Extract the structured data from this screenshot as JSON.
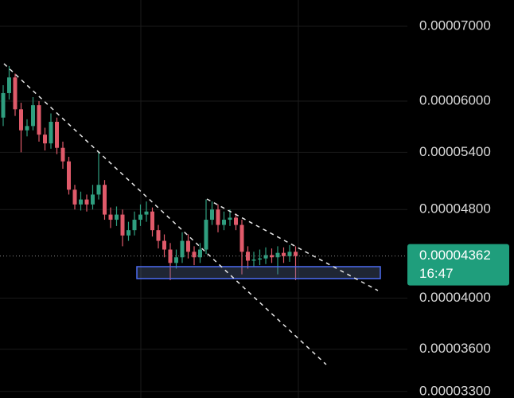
{
  "chart_data": {
    "type": "candlestick",
    "log_scale": true,
    "ylim": [
      3.256e-05,
      7.389e-05
    ],
    "yticks": [
      {
        "value": 7e-05,
        "label": "0.00007000"
      },
      {
        "value": 6e-05,
        "label": "0.00006000"
      },
      {
        "value": 5.4e-05,
        "label": "0.00005400"
      },
      {
        "value": 4.8e-05,
        "label": "0.00004800"
      },
      {
        "value": 4e-05,
        "label": "0.00004000"
      },
      {
        "value": 3.6e-05,
        "label": "0.00003600"
      },
      {
        "value": 3.3e-05,
        "label": "0.00003300"
      }
    ],
    "grid": true,
    "up_color": "#2f9e7f",
    "down_color": "#e05a6a",
    "open": [
      5.8e-05,
      6.1e-05,
      6.3e-05,
      5.9e-05,
      5.65e-05,
      5.7e-05,
      5.95e-05,
      5.6e-05,
      5.5e-05,
      5.75e-05,
      5.45e-05,
      5.3e-05,
      5e-05,
      4.85e-05,
      4.9e-05,
      4.85e-05,
      4.95e-05,
      5.05e-05,
      4.75e-05,
      4.7e-05,
      4.75e-05,
      4.55e-05,
      4.6e-05,
      4.7e-05,
      4.75e-05,
      4.78e-05,
      4.6e-05,
      4.5e-05,
      4.42e-05,
      4.3e-05,
      4.35e-05,
      4.5e-05,
      4.4e-05,
      4.35e-05,
      4.42e-05,
      4.7e-05,
      4.8e-05,
      4.65e-05,
      4.7e-05,
      4.72e-05,
      4.65e-05,
      4.4e-05,
      4.32e-05,
      4.33e-05,
      4.34e-05,
      4.37e-05,
      4.35e-05,
      4.39e-05,
      4.36e-05,
      4.4e-05
    ],
    "high": [
      6.2e-05,
      6.45e-05,
      6.35e-05,
      5.98e-05,
      5.78e-05,
      6.05e-05,
      6e-05,
      5.68e-05,
      5.85e-05,
      5.8e-05,
      5.52e-05,
      5.35e-05,
      5.05e-05,
      4.98e-05,
      4.95e-05,
      5.05e-05,
      5.4e-05,
      5.1e-05,
      4.82e-05,
      4.83e-05,
      4.8e-05,
      4.68e-05,
      4.78e-05,
      4.85e-05,
      4.88e-05,
      4.82e-05,
      4.65e-05,
      4.56e-05,
      4.48e-05,
      4.42e-05,
      4.58e-05,
      4.56e-05,
      4.45e-05,
      4.48e-05,
      4.9e-05,
      4.88e-05,
      4.85e-05,
      4.78e-05,
      4.8e-05,
      4.76e-05,
      4.7e-05,
      4.45e-05,
      4.4e-05,
      4.42e-05,
      4.44e-05,
      4.43e-05,
      4.45e-05,
      4.44e-05,
      4.46e-05,
      4.45e-05
    ],
    "low": [
      5.7e-05,
      6.02e-05,
      5.82e-05,
      5.4e-05,
      5.58e-05,
      5.65e-05,
      5.52e-05,
      5.42e-05,
      5.44e-05,
      5.38e-05,
      5.22e-05,
      4.95e-05,
      4.8e-05,
      4.79e-05,
      4.78e-05,
      4.8e-05,
      4.9e-05,
      4.7e-05,
      4.62e-05,
      4.64e-05,
      4.45e-05,
      4.5e-05,
      4.55e-05,
      4.64e-05,
      4.68e-05,
      4.54e-05,
      4.43e-05,
      4.35e-05,
      4.15e-05,
      4.25e-05,
      4.3e-05,
      4.34e-05,
      4.28e-05,
      4.3e-05,
      4.38e-05,
      4.65e-05,
      4.58e-05,
      4.6e-05,
      4.64e-05,
      4.6e-05,
      4.2e-05,
      4.25e-05,
      4.27e-05,
      4.28e-05,
      4.29e-05,
      4.3e-05,
      4.2e-05,
      4.3e-05,
      4.31e-05,
      4.15e-05
    ],
    "close": [
      6.1e-05,
      6.3e-05,
      5.9e-05,
      5.65e-05,
      5.7e-05,
      5.95e-05,
      5.6e-05,
      5.5e-05,
      5.75e-05,
      5.45e-05,
      5.3e-05,
      5e-05,
      4.85e-05,
      4.9e-05,
      4.85e-05,
      4.95e-05,
      5.05e-05,
      4.75e-05,
      4.7e-05,
      4.75e-05,
      4.55e-05,
      4.6e-05,
      4.7e-05,
      4.75e-05,
      4.78e-05,
      4.6e-05,
      4.5e-05,
      4.42e-05,
      4.3e-05,
      4.35e-05,
      4.5e-05,
      4.4e-05,
      4.35e-05,
      4.42e-05,
      4.7e-05,
      4.8e-05,
      4.65e-05,
      4.7e-05,
      4.72e-05,
      4.65e-05,
      4.4e-05,
      4.32e-05,
      4.33e-05,
      4.34e-05,
      4.37e-05,
      4.35e-05,
      4.39e-05,
      4.36e-05,
      4.4e-05,
      4.362e-05
    ],
    "last_price": 4.362e-05,
    "countdown": "16:47",
    "price_label_color": "#1f9e7c"
  }
}
